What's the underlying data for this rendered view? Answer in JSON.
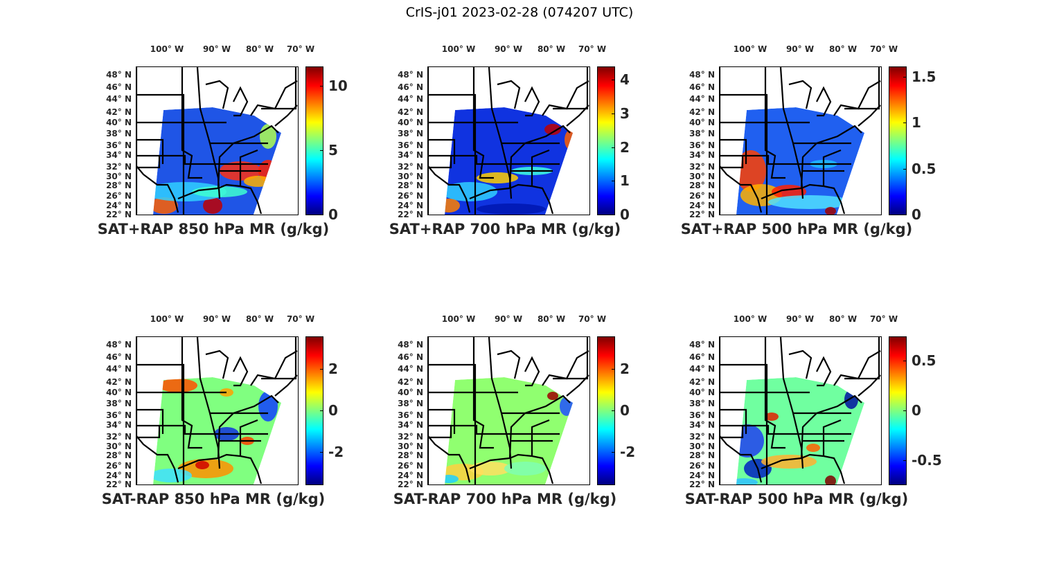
{
  "title": "CrIS-j01 2023-02-28 (074207 UTC)",
  "lon_labels": [
    "100° W",
    "90° W",
    "80° W",
    "70° W"
  ],
  "lat_labels": [
    "48° N",
    "46° N",
    "44° N",
    "42° N",
    "40° N",
    "38° N",
    "36° N",
    "34° N",
    "32° N",
    "30° N",
    "28° N",
    "26° N",
    "24° N",
    "22° N"
  ],
  "colormap": [
    "#000080",
    "#0000ff",
    "#00ffff",
    "#ffff00",
    "#ff0000",
    "#800000"
  ],
  "panels": [
    {
      "title": "SAT+RAP 850 hPa MR (g/kg)",
      "vmin": 0,
      "vmax": 11.5,
      "ticks": [
        0,
        5,
        10
      ],
      "tick_labels": [
        "0",
        "5",
        "10"
      ]
    },
    {
      "title": "SAT+RAP 700 hPa MR (g/kg)",
      "vmin": 0,
      "vmax": 4.4,
      "ticks": [
        0,
        1,
        2,
        3,
        4
      ],
      "tick_labels": [
        "0",
        "1",
        "2",
        "3",
        "4"
      ]
    },
    {
      "title": "SAT+RAP 500 hPa MR (g/kg)",
      "vmin": 0,
      "vmax": 1.61,
      "ticks": [
        0,
        0.5,
        1,
        1.5
      ],
      "tick_labels": [
        "0",
        "0.5",
        "1",
        "1.5"
      ]
    },
    {
      "title": "SAT-RAP 850 hPa MR (g/kg)",
      "vmin": -3.55,
      "vmax": 3.55,
      "ticks": [
        -2,
        0,
        2
      ],
      "tick_labels": [
        "-2",
        "0",
        "2"
      ]
    },
    {
      "title": "SAT-RAP 700 hPa MR (g/kg)",
      "vmin": -3.55,
      "vmax": 3.55,
      "ticks": [
        -2,
        0,
        2
      ],
      "tick_labels": [
        "-2",
        "0",
        "2"
      ]
    },
    {
      "title": "SAT-RAP 500 hPa MR (g/kg)",
      "vmin": -0.74,
      "vmax": 0.74,
      "ticks": [
        -0.5,
        0,
        0.5
      ],
      "tick_labels": [
        "-0.5",
        "0",
        "0.5"
      ]
    }
  ]
}
